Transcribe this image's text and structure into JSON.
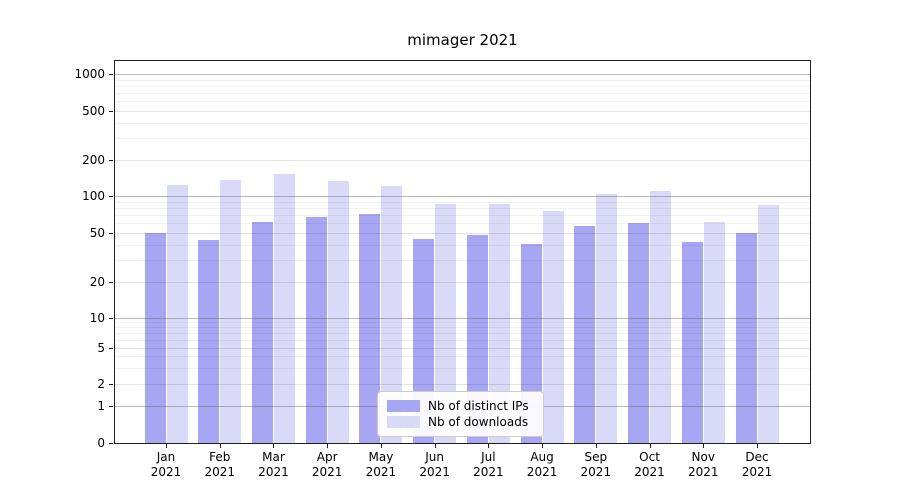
{
  "title": "mimager 2021",
  "chart_data": {
    "type": "bar",
    "title": "mimager 2021",
    "months": [
      "Jan",
      "Feb",
      "Mar",
      "Apr",
      "May",
      "Jun",
      "Jul",
      "Aug",
      "Sep",
      "Oct",
      "Nov",
      "Dec"
    ],
    "year": "2021",
    "categories": [
      "Jan 2021",
      "Feb 2021",
      "Mar 2021",
      "Apr 2021",
      "May 2021",
      "Jun 2021",
      "Jul 2021",
      "Aug 2021",
      "Sep 2021",
      "Oct 2021",
      "Nov 2021",
      "Dec 2021"
    ],
    "series": [
      {
        "name": "Nb of distinct IPs",
        "color": "#a6a6f2",
        "values": [
          50,
          44,
          61,
          68,
          72,
          45,
          48,
          41,
          57,
          60,
          42,
          50
        ]
      },
      {
        "name": "Nb of downloads",
        "color": "#d9d9f8",
        "values": [
          123,
          135,
          152,
          134,
          120,
          86,
          86,
          75,
          103,
          110,
          62,
          85
        ]
      }
    ],
    "yscale": "symlog",
    "yticks": [
      0,
      1,
      2,
      5,
      10,
      20,
      50,
      100,
      200,
      500,
      1000
    ],
    "minor_yticks": [
      3,
      4,
      6,
      7,
      8,
      9,
      30,
      40,
      60,
      70,
      80,
      90,
      300,
      400,
      600,
      700,
      800,
      900
    ],
    "ylim": [
      0,
      1300
    ],
    "grid": true,
    "legend_position": "lower-center",
    "colors": {
      "spine": "#1f1f1f",
      "major_grid": "#bdbdbd",
      "labeled_grid": "#e2e2e2",
      "minor_grid": "#efefef"
    }
  }
}
